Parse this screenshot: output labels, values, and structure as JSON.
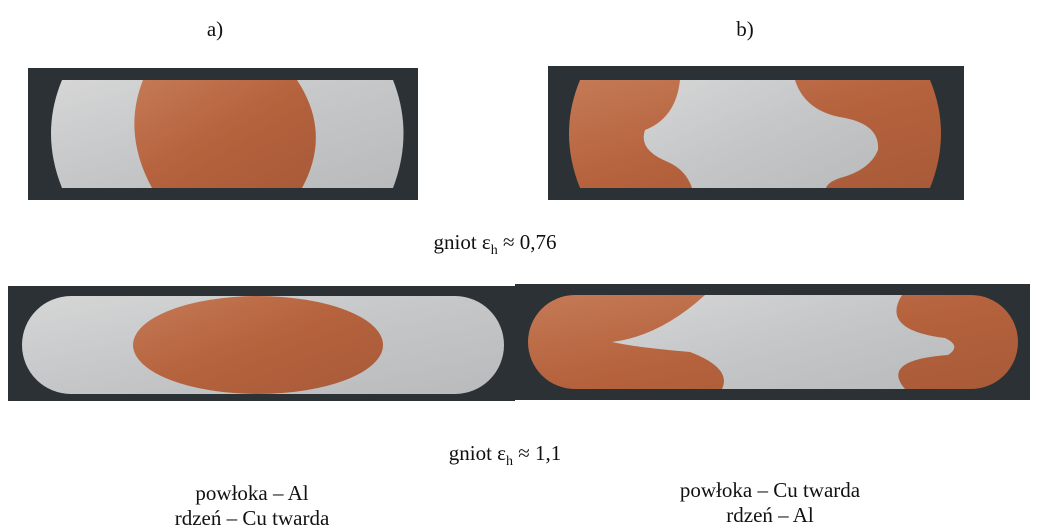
{
  "panels": {
    "a": {
      "label": "a)"
    },
    "b": {
      "label": "b)"
    }
  },
  "captions": [
    {
      "prefix": "gniot ε",
      "subscript": "h",
      "suffix": " ≈ 0,76"
    },
    {
      "prefix": "gniot ε",
      "subscript": "h",
      "suffix": " ≈ 1,1"
    }
  ],
  "descriptions": {
    "a": {
      "lines": [
        "powłoka – Al",
        "rdzeń – Cu twarda"
      ]
    },
    "b": {
      "lines": [
        "powłoka – Cu twarda",
        "rdzeń – Al"
      ]
    }
  }
}
